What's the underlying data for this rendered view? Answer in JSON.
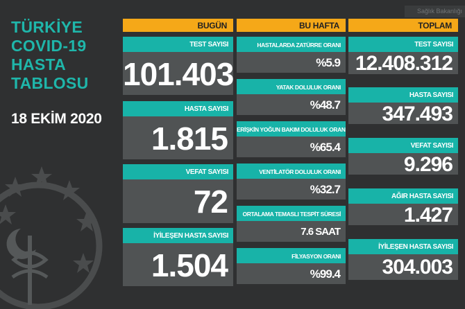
{
  "header": {
    "title_lines": [
      "TÜRKİYE",
      "COVID-19",
      "HASTA",
      "TABLOSU"
    ],
    "date": "18 EKİM 2020",
    "corner_logo_text": "Sağlık Bakanlığı"
  },
  "columns": {
    "today": {
      "header": "BUGÜN",
      "cards": [
        {
          "label": "TEST SAYISI",
          "value": "101.403"
        },
        {
          "label": "HASTA SAYISI",
          "value": "1.815"
        },
        {
          "label": "VEFAT SAYISI",
          "value": "72"
        },
        {
          "label": "İYİLEŞEN HASTA SAYISI",
          "value": "1.504"
        }
      ]
    },
    "week": {
      "header": "BU HAFTA",
      "cards": [
        {
          "label": "HASTALARDA ZATÜRRE ORANI",
          "value": "%5.9"
        },
        {
          "label": "YATAK DOLULUK ORANI",
          "value": "%48.7"
        },
        {
          "label": "ERİŞKİN YOĞUN BAKIM DOLULUK ORANI",
          "value": "%65.4"
        },
        {
          "label": "VENTİLATÖR DOLULUK ORANI",
          "value": "%32.7"
        },
        {
          "label": "ORTALAMA TEMASLI TESPİT SÜRESİ",
          "value": "7.6 SAAT"
        },
        {
          "label": "FİLYASYON ORANI",
          "value": "%99.4"
        }
      ]
    },
    "total": {
      "header": "TOPLAM",
      "cards": [
        {
          "label": "TEST SAYISI",
          "value": "12.408.312"
        },
        {
          "label": "HASTA SAYISI",
          "value": "347.493"
        },
        {
          "label": "VEFAT SAYISI",
          "value": "9.296"
        },
        {
          "label": "AĞIR HASTA SAYISI",
          "value": "1.427"
        },
        {
          "label": "İYİLEŞEN HASTA SAYISI",
          "value": "304.003"
        }
      ]
    }
  },
  "colors": {
    "background": "#2f3031",
    "header_accent": "#f5a818",
    "label_teal": "#18b3a8",
    "value_panel": "#505354",
    "title_teal": "#1fb6aa"
  }
}
